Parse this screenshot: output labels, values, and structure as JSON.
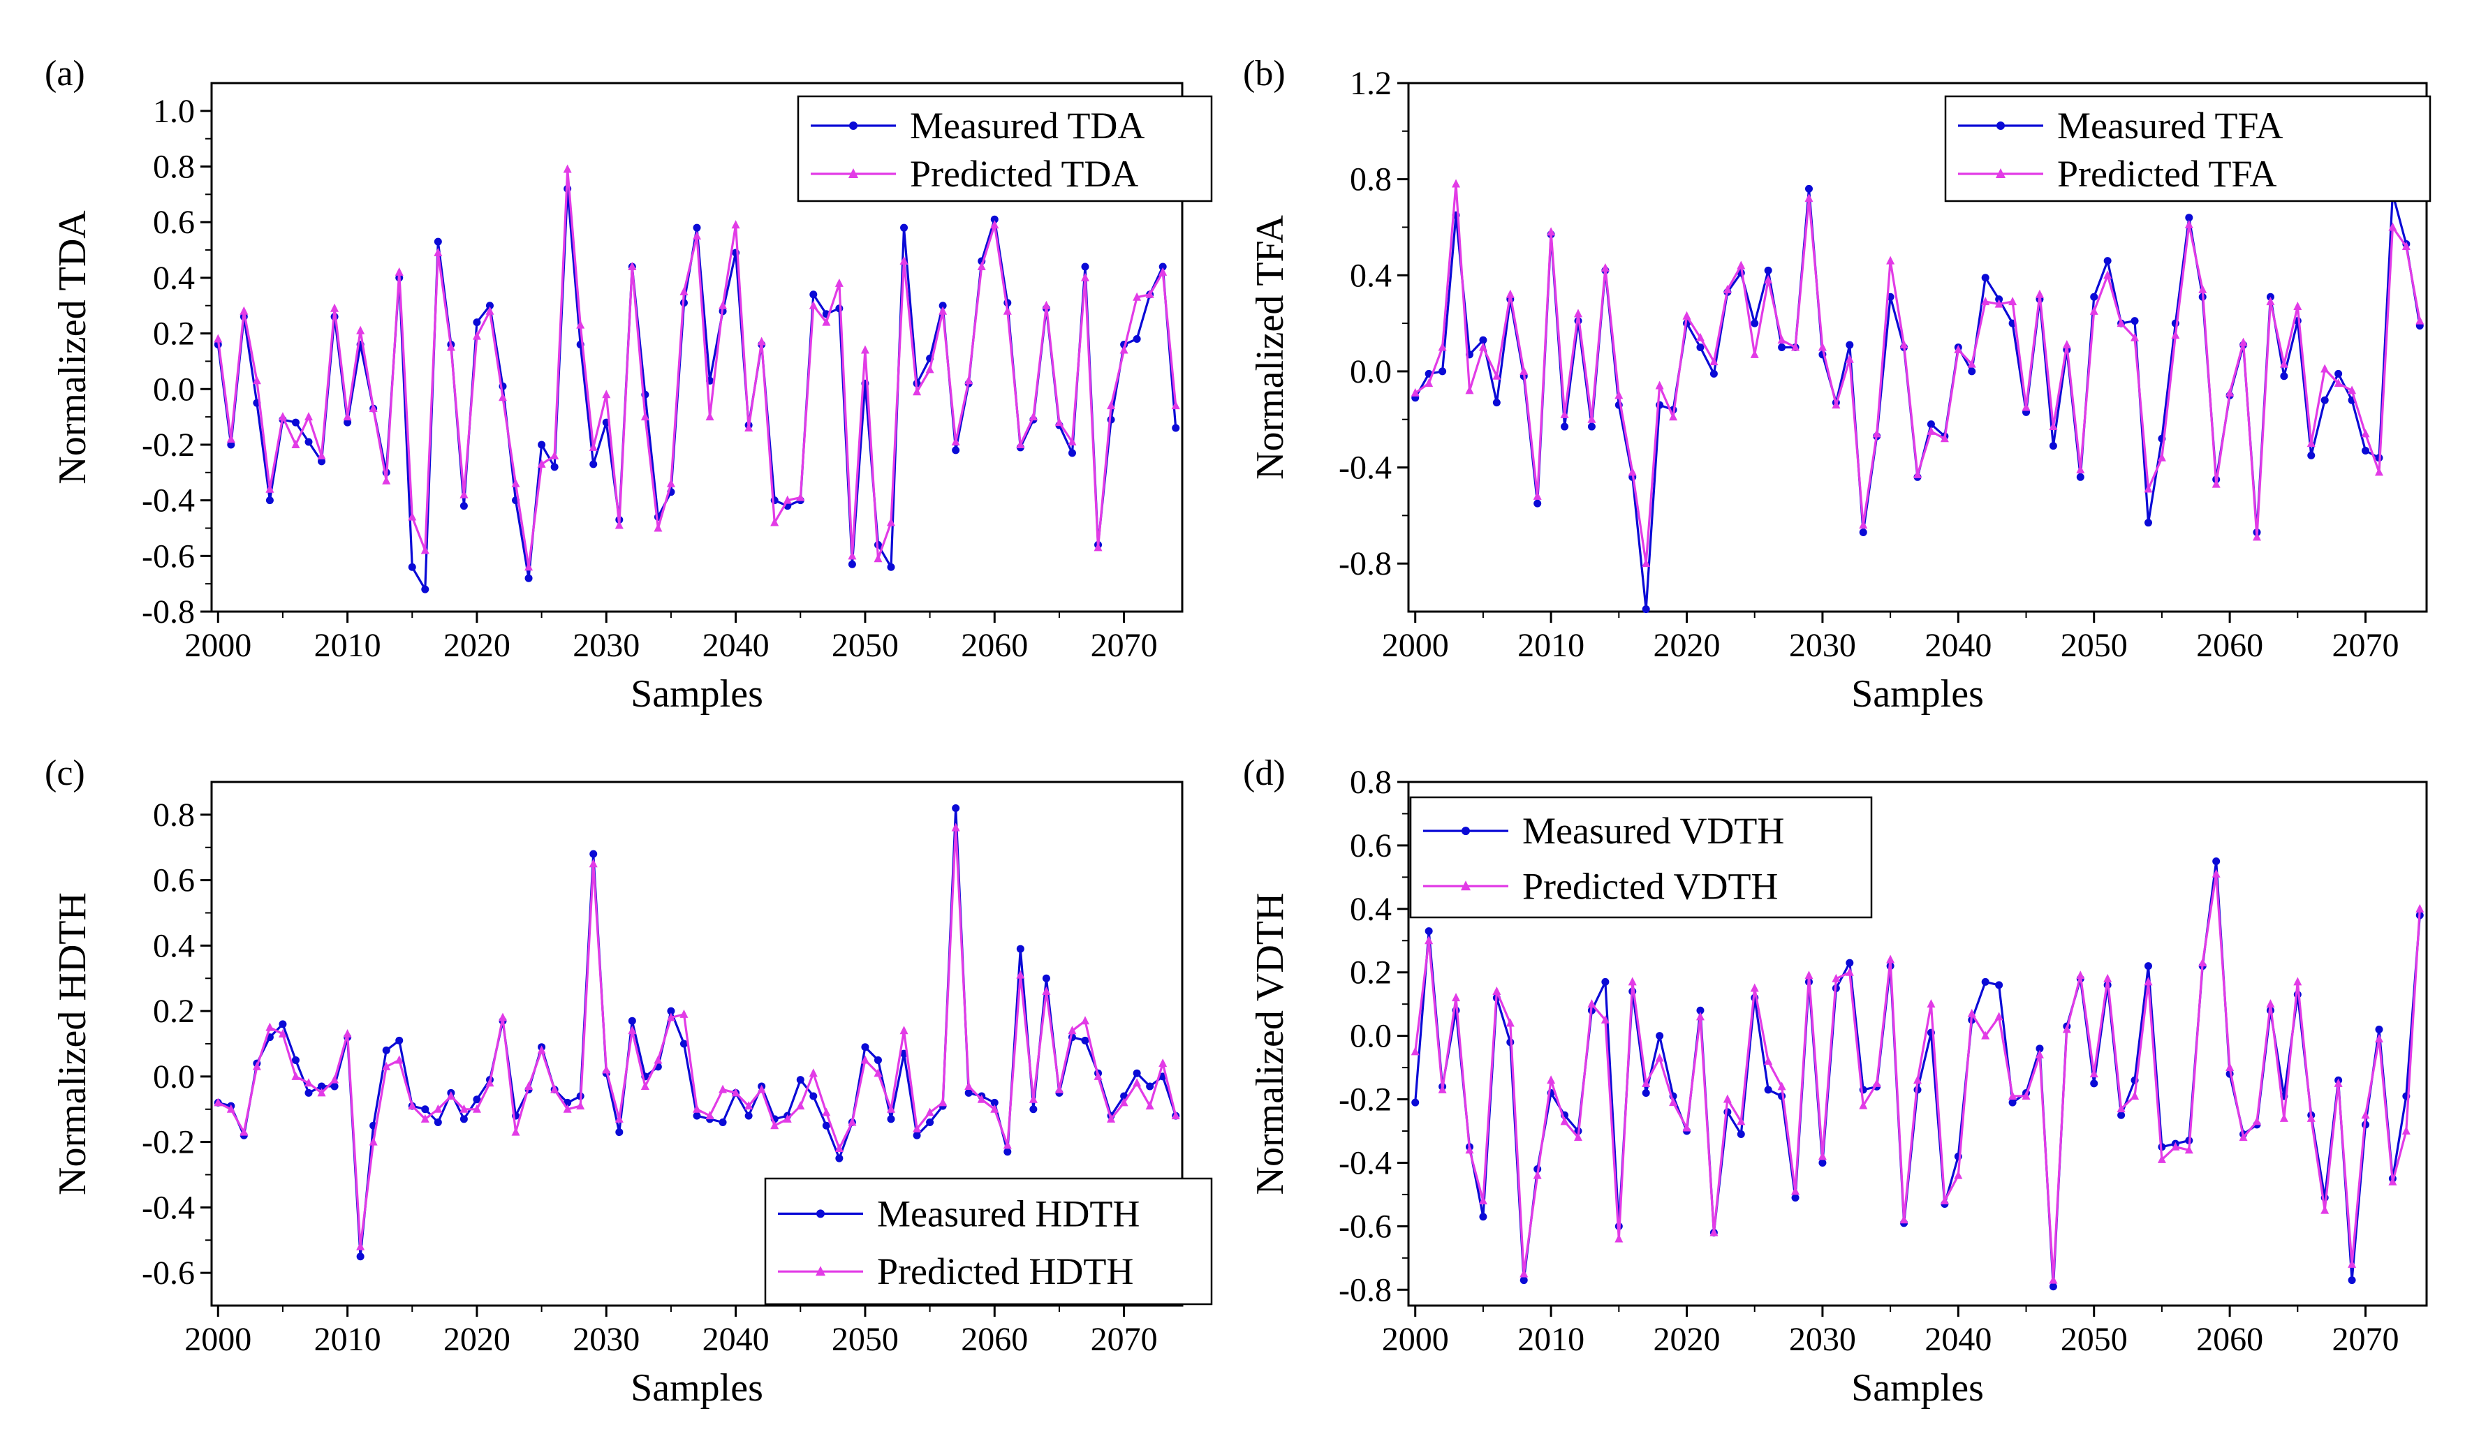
{
  "colors": {
    "measured": "#0a0ad6",
    "predicted": "#e23be6"
  },
  "chart_data": [
    {
      "panel": "(a)",
      "type": "line",
      "xlabel": "Samples",
      "ylabel": "Normalized TDA",
      "xlim": [
        1999.5,
        2074.5
      ],
      "ylim": [
        -0.8,
        1.1
      ],
      "xticks": [
        2000,
        2010,
        2020,
        2030,
        2040,
        2050,
        2060,
        2070
      ],
      "yticks": [
        -0.8,
        -0.6,
        -0.4,
        -0.2,
        0.0,
        0.2,
        0.4,
        0.6,
        0.8,
        1.0
      ],
      "ytick_labels": [
        "-0.8",
        "-0.6",
        "-0.4",
        "-0.2",
        "0.0",
        "0.2",
        "0.4",
        "0.6",
        "0.8",
        "1.0"
      ],
      "legend_position": "top-right",
      "x_start": 2000,
      "series": [
        {
          "name": "Measured TDA",
          "values": [
            0.16,
            -0.2,
            0.26,
            -0.05,
            -0.4,
            -0.11,
            -0.12,
            -0.19,
            -0.26,
            0.26,
            -0.12,
            0.16,
            -0.07,
            -0.3,
            0.4,
            -0.64,
            -0.72,
            0.53,
            0.16,
            -0.42,
            0.24,
            0.3,
            0.01,
            -0.4,
            -0.68,
            -0.2,
            -0.28,
            0.72,
            0.16,
            -0.27,
            -0.12,
            -0.47,
            0.44,
            -0.02,
            -0.46,
            -0.37,
            0.31,
            0.58,
            0.03,
            0.28,
            0.49,
            -0.13,
            0.16,
            -0.4,
            -0.42,
            -0.4,
            0.34,
            0.27,
            0.29,
            -0.63,
            0.02,
            -0.56,
            -0.64,
            0.58,
            0.02,
            0.11,
            0.3,
            -0.22,
            0.02,
            0.46,
            0.61,
            0.31,
            -0.21,
            -0.11,
            0.29,
            -0.13,
            -0.23,
            0.44,
            -0.56,
            -0.11,
            0.16,
            0.18,
            0.34,
            0.44,
            -0.14
          ]
        },
        {
          "name": "Predicted TDA",
          "values": [
            0.18,
            -0.18,
            0.28,
            0.03,
            -0.36,
            -0.1,
            -0.2,
            -0.1,
            -0.24,
            0.29,
            -0.1,
            0.21,
            -0.07,
            -0.33,
            0.42,
            -0.46,
            -0.58,
            0.49,
            0.15,
            -0.38,
            0.19,
            0.28,
            -0.03,
            -0.34,
            -0.64,
            -0.27,
            -0.24,
            0.79,
            0.23,
            -0.21,
            -0.02,
            -0.49,
            0.44,
            -0.1,
            -0.5,
            -0.34,
            0.35,
            0.55,
            -0.1,
            0.3,
            0.59,
            -0.14,
            0.17,
            -0.48,
            -0.4,
            -0.39,
            0.3,
            0.24,
            0.38,
            -0.6,
            0.14,
            -0.61,
            -0.48,
            0.46,
            -0.01,
            0.07,
            0.28,
            -0.19,
            0.03,
            0.44,
            0.59,
            0.28,
            -0.2,
            -0.1,
            0.3,
            -0.12,
            -0.19,
            0.4,
            -0.57,
            -0.06,
            0.14,
            0.33,
            0.34,
            0.42,
            -0.06
          ]
        }
      ]
    },
    {
      "panel": "(b)",
      "type": "line",
      "xlabel": "Samples",
      "ylabel": "Normalized TFA",
      "xlim": [
        1999.5,
        2074.5
      ],
      "ylim": [
        -1.0,
        1.2
      ],
      "xticks": [
        2000,
        2010,
        2020,
        2030,
        2040,
        2050,
        2060,
        2070
      ],
      "yticks": [
        -0.8,
        -0.4,
        0.0,
        0.4,
        0.8,
        1.2
      ],
      "ytick_labels": [
        "-0.8",
        "-0.4",
        "0.0",
        "0.4",
        "0.8",
        "1.2"
      ],
      "legend_position": "top-right",
      "x_start": 2000,
      "series": [
        {
          "name": "Measured TFA",
          "values": [
            -0.11,
            -0.01,
            0.0,
            0.65,
            0.07,
            0.13,
            -0.13,
            0.3,
            -0.02,
            -0.55,
            0.57,
            -0.23,
            0.21,
            -0.23,
            0.42,
            -0.14,
            -0.44,
            -0.99,
            -0.14,
            -0.16,
            0.2,
            0.1,
            -0.01,
            0.33,
            0.41,
            0.2,
            0.42,
            0.1,
            0.1,
            0.76,
            0.07,
            -0.13,
            0.11,
            -0.67,
            -0.27,
            0.31,
            0.1,
            -0.44,
            -0.22,
            -0.27,
            0.1,
            0.0,
            0.39,
            0.3,
            0.2,
            -0.17,
            0.3,
            -0.31,
            0.09,
            -0.44,
            0.31,
            0.46,
            0.2,
            0.21,
            -0.63,
            -0.28,
            0.2,
            0.64,
            0.31,
            -0.45,
            -0.1,
            0.11,
            -0.67,
            0.31,
            -0.02,
            0.21,
            -0.35,
            -0.12,
            -0.01,
            -0.12,
            -0.33,
            -0.36,
            0.74,
            0.53,
            0.19
          ]
        },
        {
          "name": "Predicted TFA",
          "values": [
            -0.09,
            -0.05,
            0.1,
            0.78,
            -0.08,
            0.1,
            -0.02,
            0.32,
            0.0,
            -0.52,
            0.58,
            -0.18,
            0.24,
            -0.2,
            0.43,
            -0.1,
            -0.42,
            -0.8,
            -0.06,
            -0.19,
            0.23,
            0.14,
            0.04,
            0.34,
            0.44,
            0.07,
            0.38,
            0.13,
            0.1,
            0.72,
            0.1,
            -0.14,
            0.05,
            -0.64,
            -0.26,
            0.46,
            0.11,
            -0.43,
            -0.25,
            -0.28,
            0.09,
            0.03,
            0.29,
            0.28,
            0.29,
            -0.15,
            0.32,
            -0.23,
            0.11,
            -0.41,
            0.25,
            0.4,
            0.2,
            0.14,
            -0.49,
            -0.36,
            0.15,
            0.61,
            0.34,
            -0.47,
            -0.09,
            0.12,
            -0.69,
            0.29,
            0.03,
            0.27,
            -0.3,
            0.01,
            -0.05,
            -0.08,
            -0.26,
            -0.42,
            0.6,
            0.52,
            0.21
          ]
        }
      ]
    },
    {
      "panel": "(c)",
      "type": "line",
      "xlabel": "Samples",
      "ylabel": "Normalized HDTH",
      "xlim": [
        1999.5,
        2074.5
      ],
      "ylim": [
        -0.7,
        0.9
      ],
      "xticks": [
        2000,
        2010,
        2020,
        2030,
        2040,
        2050,
        2060,
        2070
      ],
      "yticks": [
        -0.6,
        -0.4,
        -0.2,
        0.0,
        0.2,
        0.4,
        0.6,
        0.8
      ],
      "ytick_labels": [
        "-0.6",
        "-0.4",
        "-0.2",
        "0.0",
        "0.2",
        "0.4",
        "0.6",
        "0.8"
      ],
      "legend_position": "bottom-right",
      "x_start": 2000,
      "series": [
        {
          "name": "Measured HDTH",
          "values": [
            -0.08,
            -0.09,
            -0.18,
            0.04,
            0.12,
            0.16,
            0.05,
            -0.05,
            -0.03,
            -0.03,
            0.12,
            -0.55,
            -0.15,
            0.08,
            0.11,
            -0.09,
            -0.1,
            -0.14,
            -0.05,
            -0.13,
            -0.07,
            -0.01,
            0.17,
            -0.12,
            -0.04,
            0.09,
            -0.04,
            -0.08,
            -0.06,
            0.68,
            0.01,
            -0.17,
            0.17,
            0.0,
            0.03,
            0.2,
            0.1,
            -0.12,
            -0.13,
            -0.14,
            -0.05,
            -0.12,
            -0.03,
            -0.13,
            -0.12,
            -0.01,
            -0.06,
            -0.15,
            -0.25,
            -0.14,
            0.09,
            0.05,
            -0.13,
            0.07,
            -0.18,
            -0.14,
            -0.09,
            0.82,
            -0.05,
            -0.06,
            -0.08,
            -0.23,
            0.39,
            -0.1,
            0.3,
            -0.05,
            0.12,
            0.11,
            0.01,
            -0.12,
            -0.06,
            0.01,
            -0.03,
            0.0,
            -0.12
          ]
        },
        {
          "name": "Predicted HDTH",
          "values": [
            -0.08,
            -0.1,
            -0.17,
            0.03,
            0.15,
            0.13,
            0.0,
            -0.02,
            -0.05,
            -0.01,
            0.13,
            -0.52,
            -0.2,
            0.03,
            0.05,
            -0.09,
            -0.13,
            -0.1,
            -0.06,
            -0.1,
            -0.1,
            -0.02,
            0.18,
            -0.17,
            -0.03,
            0.08,
            -0.04,
            -0.1,
            -0.09,
            0.65,
            0.02,
            -0.13,
            0.14,
            -0.03,
            0.05,
            0.18,
            0.19,
            -0.1,
            -0.12,
            -0.04,
            -0.05,
            -0.09,
            -0.04,
            -0.15,
            -0.13,
            -0.09,
            0.01,
            -0.11,
            -0.22,
            -0.14,
            0.05,
            0.01,
            -0.1,
            0.14,
            -0.16,
            -0.11,
            -0.08,
            0.76,
            -0.03,
            -0.07,
            -0.1,
            -0.21,
            0.31,
            -0.07,
            0.26,
            -0.04,
            0.14,
            0.17,
            0.0,
            -0.13,
            -0.08,
            -0.02,
            -0.09,
            0.04,
            -0.12
          ]
        }
      ]
    },
    {
      "panel": "(d)",
      "type": "line",
      "xlabel": "Samples",
      "ylabel": "Normalized VDTH",
      "xlim": [
        1999.5,
        2074.5
      ],
      "ylim": [
        -0.85,
        0.8
      ],
      "xticks": [
        2000,
        2010,
        2020,
        2030,
        2040,
        2050,
        2060,
        2070
      ],
      "yticks": [
        -0.8,
        -0.6,
        -0.4,
        -0.2,
        0.0,
        0.2,
        0.4,
        0.6,
        0.8
      ],
      "ytick_labels": [
        "-0.8",
        "-0.6",
        "-0.4",
        "-0.2",
        "0.0",
        "0.2",
        "0.4",
        "0.6",
        "0.8"
      ],
      "legend_position": "top-left",
      "x_start": 2000,
      "series": [
        {
          "name": "Measured VDTH",
          "values": [
            -0.21,
            0.33,
            -0.16,
            0.08,
            -0.35,
            -0.57,
            0.12,
            -0.02,
            -0.77,
            -0.42,
            -0.18,
            -0.25,
            -0.3,
            0.08,
            0.17,
            -0.6,
            0.14,
            -0.18,
            0.0,
            -0.19,
            -0.3,
            0.08,
            -0.62,
            -0.24,
            -0.31,
            0.12,
            -0.17,
            -0.19,
            -0.51,
            0.17,
            -0.4,
            0.15,
            0.23,
            -0.17,
            -0.16,
            0.22,
            -0.59,
            -0.17,
            0.01,
            -0.53,
            -0.38,
            0.05,
            0.17,
            0.16,
            -0.21,
            -0.18,
            -0.04,
            -0.79,
            0.03,
            0.18,
            -0.15,
            0.16,
            -0.25,
            -0.14,
            0.22,
            -0.35,
            -0.34,
            -0.33,
            0.22,
            0.55,
            -0.12,
            -0.31,
            -0.28,
            0.08,
            -0.19,
            0.13,
            -0.25,
            -0.51,
            -0.14,
            -0.77,
            -0.28,
            0.02,
            -0.45,
            -0.19,
            0.38
          ]
        },
        {
          "name": "Predicted VDTH",
          "values": [
            -0.05,
            0.3,
            -0.17,
            0.12,
            -0.36,
            -0.52,
            0.14,
            0.04,
            -0.75,
            -0.44,
            -0.14,
            -0.27,
            -0.32,
            0.1,
            0.05,
            -0.64,
            0.17,
            -0.15,
            -0.07,
            -0.21,
            -0.29,
            0.06,
            -0.62,
            -0.2,
            -0.27,
            0.15,
            -0.08,
            -0.16,
            -0.49,
            0.19,
            -0.38,
            0.18,
            0.2,
            -0.22,
            -0.15,
            0.24,
            -0.58,
            -0.14,
            0.1,
            -0.52,
            -0.44,
            0.07,
            0.0,
            0.06,
            -0.19,
            -0.19,
            -0.06,
            -0.77,
            0.02,
            0.19,
            -0.12,
            0.18,
            -0.23,
            -0.19,
            0.17,
            -0.39,
            -0.35,
            -0.36,
            0.23,
            0.51,
            -0.1,
            -0.32,
            -0.27,
            0.1,
            -0.26,
            0.17,
            -0.26,
            -0.55,
            -0.15,
            -0.72,
            -0.25,
            -0.01,
            -0.46,
            -0.3,
            0.4
          ]
        }
      ]
    }
  ]
}
